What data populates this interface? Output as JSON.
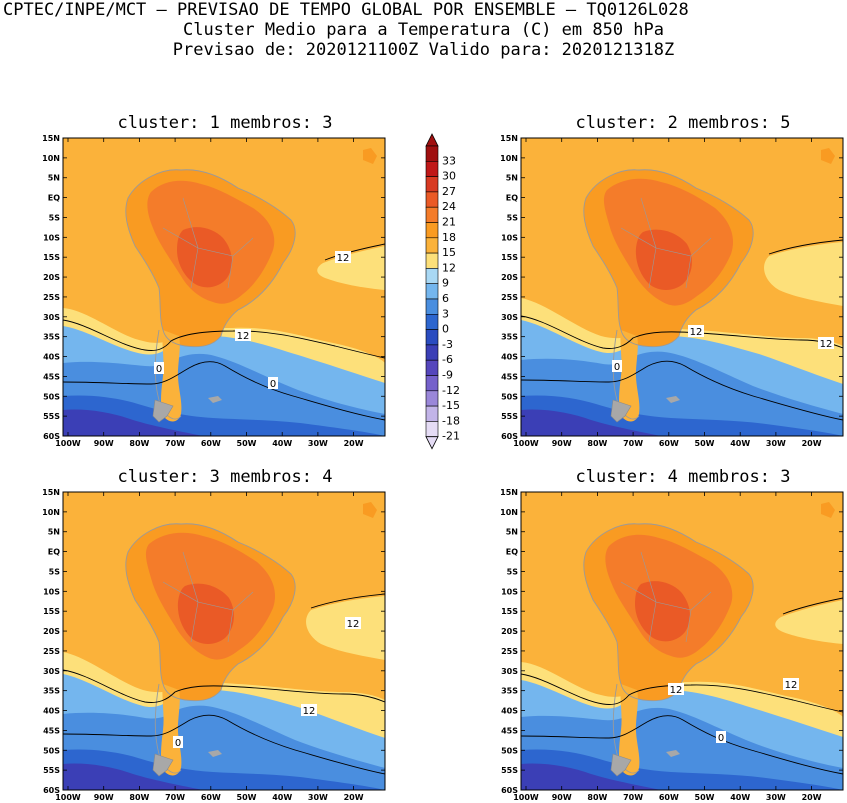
{
  "header": {
    "line1": "CPTEC/INPE/MCT – PREVISAO DE TEMPO GLOBAL POR ENSEMBLE – TQ0126L028",
    "line2": "Cluster Medio para a Temperatura (C) em 850 hPa",
    "line3": "Previsao de: 2020121100Z   Valido para: 2020121318Z"
  },
  "panels": [
    {
      "title": "cluster: 1   membros: 3",
      "contour_labels": [
        "12",
        "12",
        "0",
        "0"
      ]
    },
    {
      "title": "cluster: 2   membros: 5",
      "contour_labels": [
        "12",
        "12",
        "0"
      ]
    },
    {
      "title": "cluster: 3   membros: 4",
      "contour_labels": [
        "12",
        "12",
        "0"
      ]
    },
    {
      "title": "cluster: 4   membros: 3",
      "contour_labels": [
        "12",
        "12",
        "0"
      ]
    }
  ],
  "map": {
    "lat_labels": [
      "15N",
      "10N",
      "5N",
      "EQ",
      "5S",
      "10S",
      "15S",
      "20S",
      "25S",
      "30S",
      "35S",
      "40S",
      "45S",
      "50S",
      "55S",
      "60S"
    ],
    "lon_labels": [
      "100W",
      "90W",
      "80W",
      "70W",
      "60W",
      "50W",
      "40W",
      "30W",
      "20W"
    ]
  },
  "colorbar": {
    "labels": [
      "33",
      "30",
      "27",
      "24",
      "21",
      "18",
      "15",
      "12",
      "9",
      "6",
      "3",
      "0",
      "-3",
      "-6",
      "-9",
      "-12",
      "-15",
      "-18",
      "-21"
    ],
    "colors": [
      "#a01010",
      "#c01818",
      "#d83a22",
      "#ea5a26",
      "#f47c2a",
      "#f99b22",
      "#fbb23a",
      "#fde07a",
      "#a9d8f4",
      "#74b6ee",
      "#4a8edf",
      "#2d66cf",
      "#2a4cc0",
      "#3b3fb6",
      "#5546bc",
      "#7561cb",
      "#9a87d9",
      "#c2b4e8",
      "#e5dcf5"
    ]
  }
}
